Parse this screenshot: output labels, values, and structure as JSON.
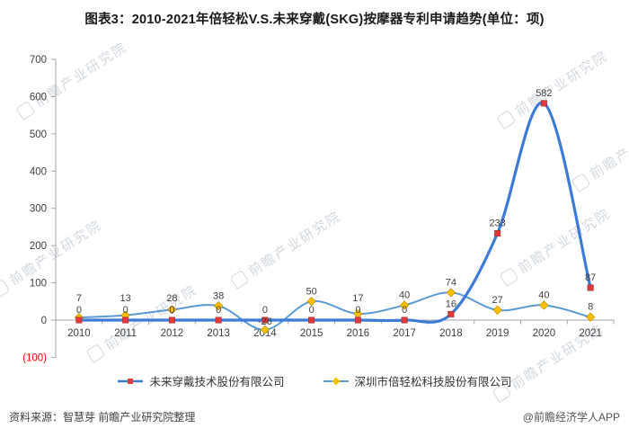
{
  "title": "图表3：2010-2021年倍轻松V.S.未来穿戴(SKG)按摩器专利申请趋势(单位：项)",
  "source_note": "资料来源：智慧芽 前瞻产业研究院整理",
  "brand_note": "@前瞻经济学人APP",
  "watermark_text": "前瞻产业研究院",
  "colors": {
    "axis": "#A6A6A6",
    "tick_text": "#404040",
    "data_label": "#3f3f3f",
    "negative_tick": "#FF0000"
  },
  "chart_data": {
    "type": "line",
    "title": "图表3：2010-2021年倍轻松V.S.未来穿戴(SKG)按摩器专利申请趋势(单位：项)",
    "categories": [
      "2010",
      "2011",
      "2012",
      "2013",
      "2014",
      "2015",
      "2016",
      "2017",
      "2018",
      "2019",
      "2020",
      "2021"
    ],
    "series": [
      {
        "name": "未来穿戴技术股份有限公司",
        "line_color": "#3D7BD9",
        "line_width": 3.2,
        "marker": "square",
        "marker_color": "#E0393C",
        "values": [
          0,
          0,
          0,
          0,
          0,
          0,
          0,
          0,
          16,
          233,
          582,
          87
        ]
      },
      {
        "name": "深圳市倍轻松科技股份有限公司",
        "line_color": "#5B9BD5",
        "line_width": 2,
        "marker": "diamond",
        "marker_color": "#FFC000",
        "values": [
          7,
          13,
          28,
          38,
          -26,
          50,
          17,
          40,
          74,
          27,
          40,
          8
        ]
      }
    ],
    "smooth": true,
    "grid": false,
    "legend_position": "bottom",
    "ylim": [
      -100,
      700
    ],
    "yticks": [
      -100,
      0,
      100,
      200,
      300,
      400,
      500,
      600,
      700
    ],
    "ytick_labels": [
      "(100)",
      "0",
      "100",
      "200",
      "300",
      "400",
      "500",
      "600",
      "700"
    ],
    "xlabel": "",
    "ylabel": ""
  }
}
